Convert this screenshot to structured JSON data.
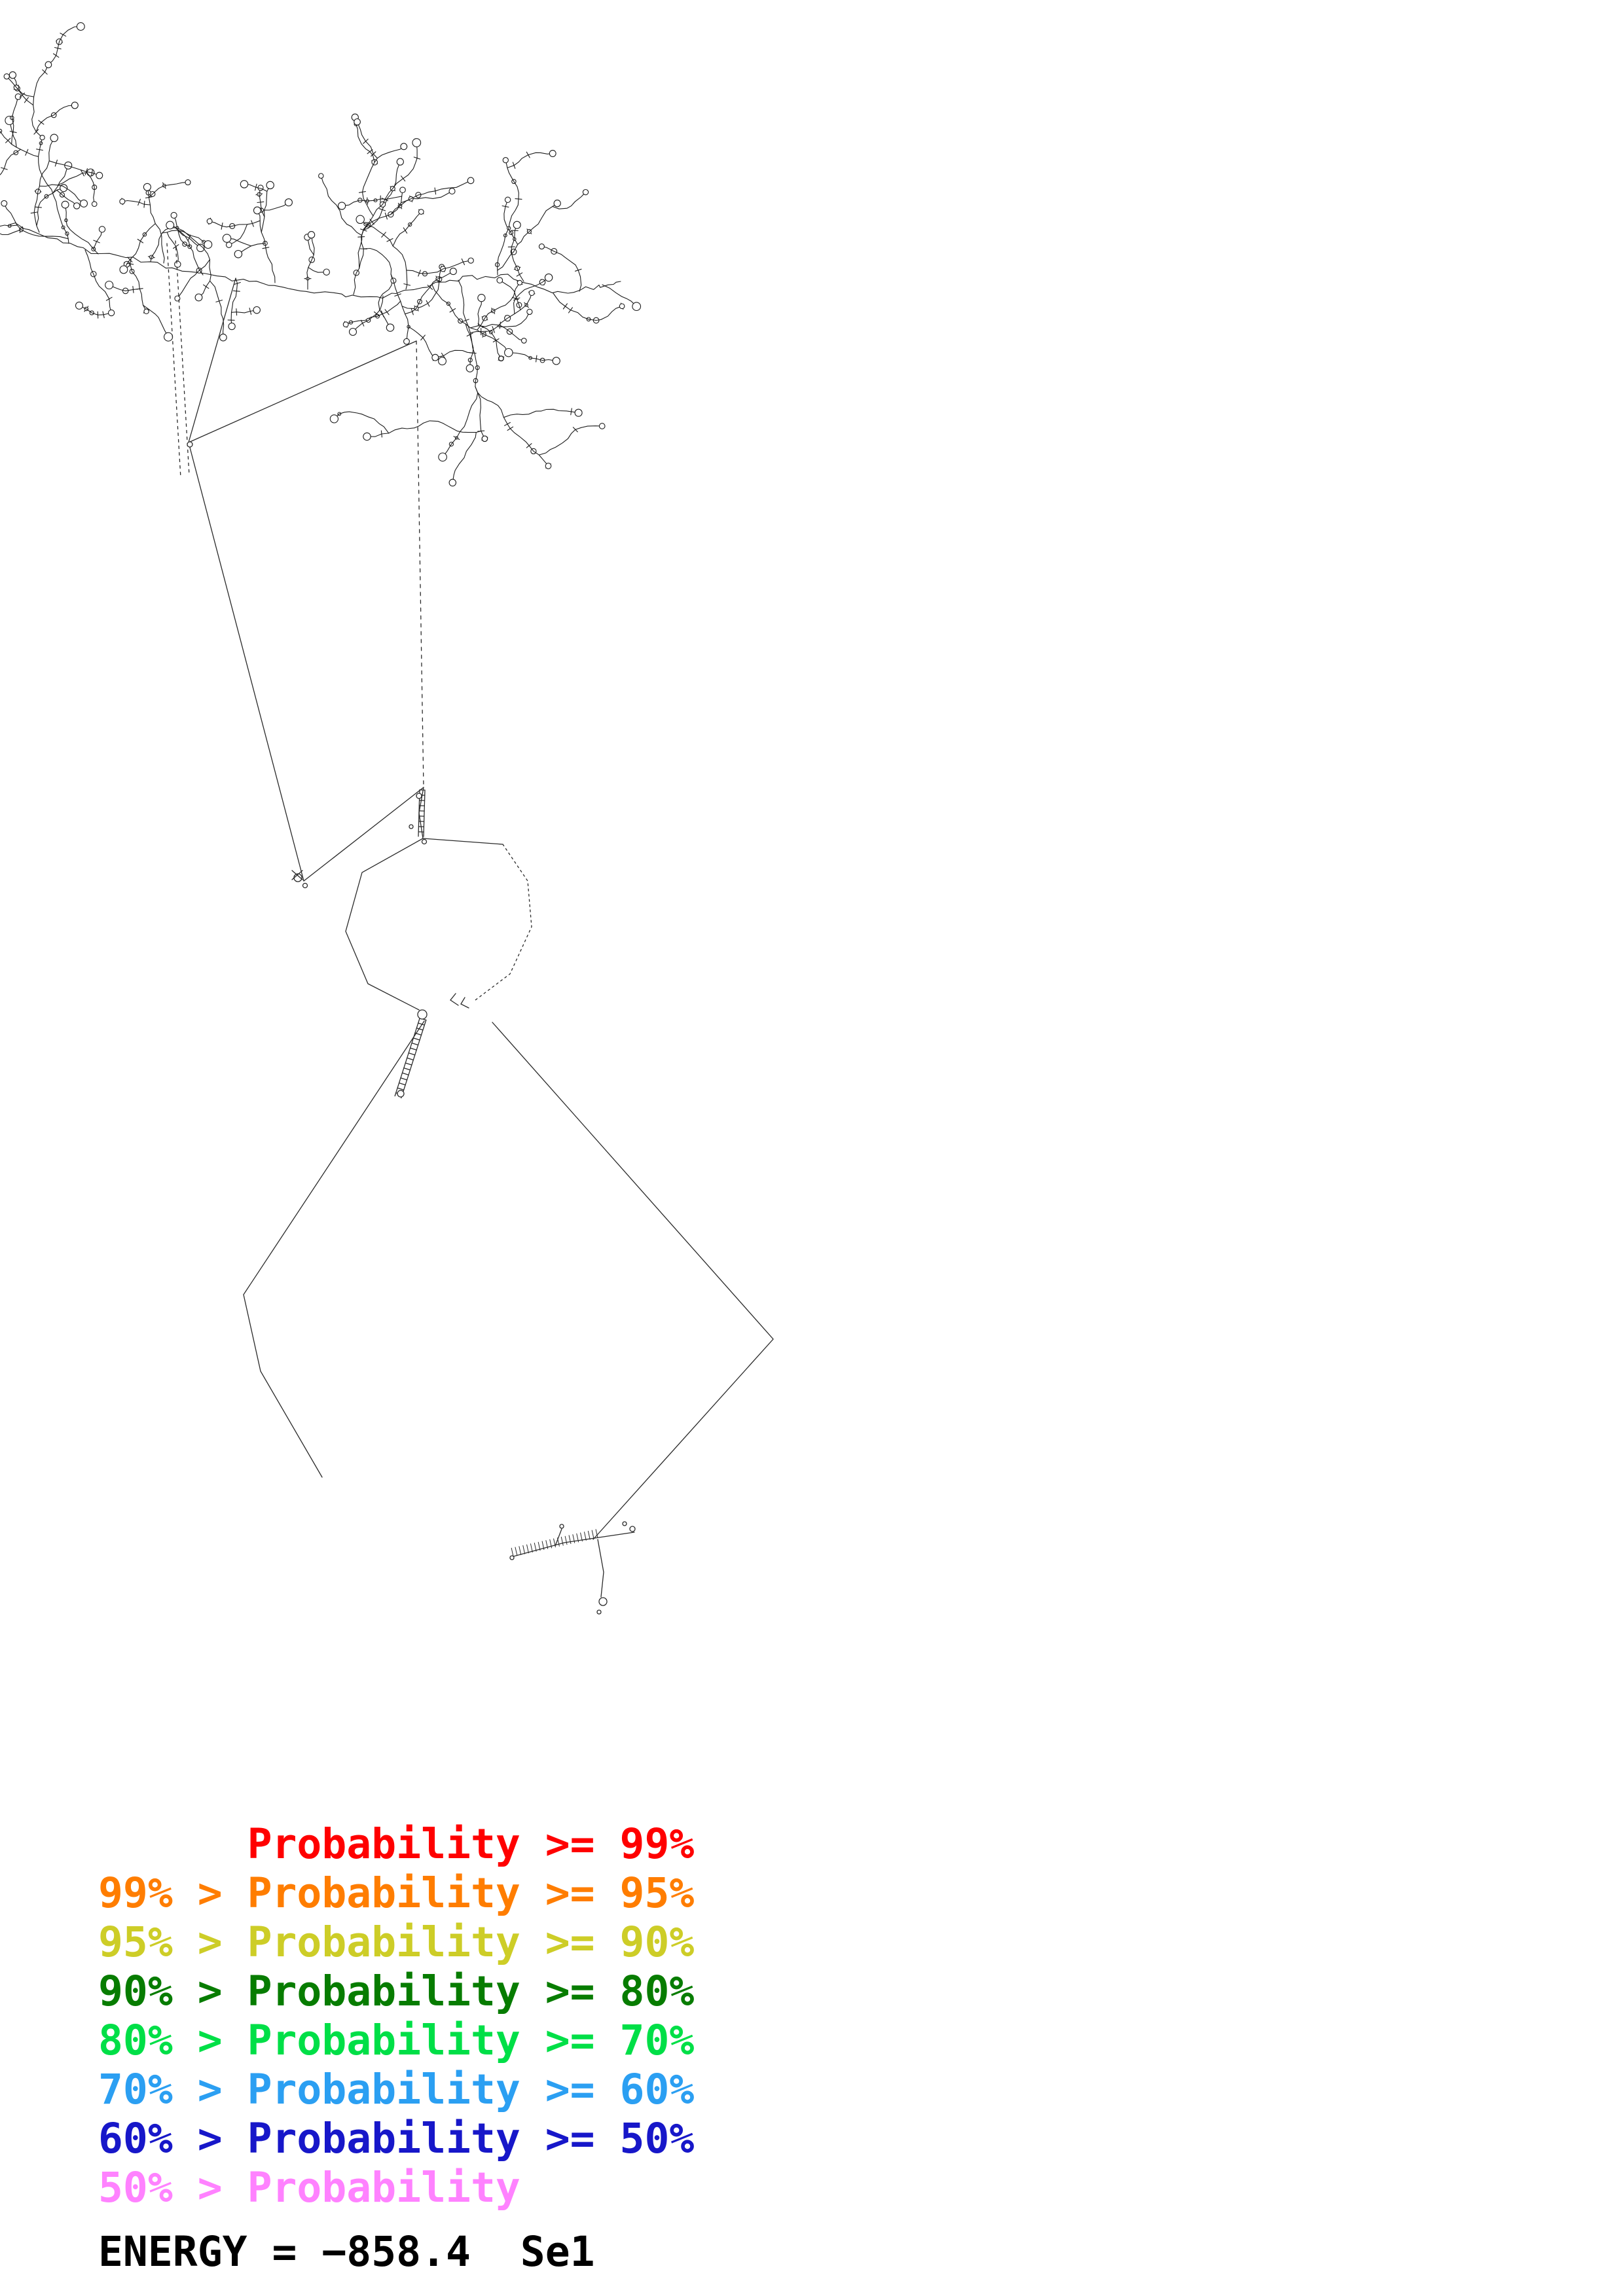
{
  "legend": {
    "items": [
      {
        "text": "      Probability >= 99%",
        "color": "#ff0000"
      },
      {
        "text": "99% > Probability >= 95%",
        "color": "#ff7d00"
      },
      {
        "text": "95% > Probability >= 90%",
        "color": "#cdcd27"
      },
      {
        "text": "90% > Probability >= 80%",
        "color": "#077c00"
      },
      {
        "text": "80% > Probability >= 70%",
        "color": "#00df47"
      },
      {
        "text": "70% > Probability >= 60%",
        "color": "#2b9ff2"
      },
      {
        "text": "60% > Probability >= 50%",
        "color": "#1717c9"
      },
      {
        "text": "50% > Probability",
        "color": "#ff82ff"
      }
    ]
  },
  "footer": {
    "energy_label": "ENERGY = −858.4  Se1"
  }
}
